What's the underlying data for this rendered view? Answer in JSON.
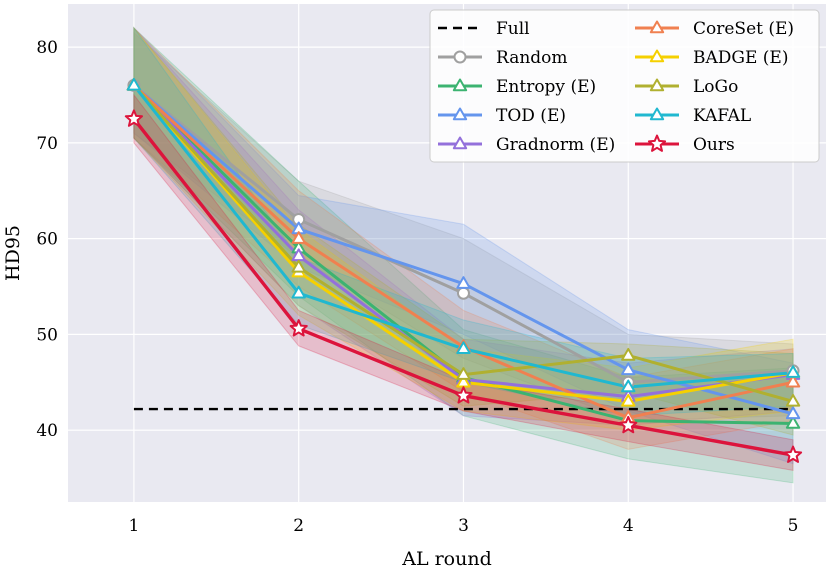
{
  "chart_data": {
    "type": "line",
    "title": "",
    "xlabel": "AL round",
    "ylabel": "HD95",
    "x": [
      1,
      2,
      3,
      4,
      5
    ],
    "xlim": [
      0.6,
      5.2
    ],
    "ylim": [
      32.5,
      84.5
    ],
    "xticks": [
      1,
      2,
      3,
      4,
      5
    ],
    "yticks": [
      40,
      50,
      60,
      70,
      80
    ],
    "grid": true,
    "legend_position": "top-right",
    "background": "#e9e9f1",
    "full_baseline": {
      "name": "Full",
      "value": 42.2,
      "color": "#000000"
    },
    "series": [
      {
        "name": "Random",
        "color": "#a0a0a0",
        "marker": "circle",
        "values": [
          76.0,
          62.0,
          54.3,
          45.0,
          46.2
        ],
        "lower": [
          71.0,
          58.0,
          47.5,
          41.0,
          41.5
        ],
        "upper": [
          81.5,
          66.0,
          60.0,
          50.0,
          49.0
        ]
      },
      {
        "name": "Entropy (E)",
        "color": "#3cb371",
        "marker": "triangle",
        "values": [
          76.0,
          59.0,
          45.5,
          41.0,
          40.7
        ],
        "lower": [
          70.5,
          54.0,
          41.5,
          37.0,
          34.5
        ],
        "upper": [
          82.0,
          66.0,
          50.5,
          45.5,
          46.5
        ]
      },
      {
        "name": "TOD (E)",
        "color": "#6495ed",
        "marker": "triangle",
        "values": [
          76.0,
          61.0,
          55.3,
          46.3,
          41.7
        ],
        "lower": [
          71.0,
          57.0,
          50.0,
          42.0,
          36.5
        ],
        "upper": [
          82.0,
          64.5,
          61.5,
          50.5,
          47.0
        ]
      },
      {
        "name": "Gradnorm (E)",
        "color": "#9370db",
        "marker": "triangle",
        "values": [
          76.0,
          58.2,
          45.3,
          43.5,
          45.8
        ],
        "lower": [
          70.5,
          53.0,
          41.5,
          40.5,
          42.0
        ],
        "upper": [
          82.0,
          63.0,
          49.5,
          47.0,
          48.5
        ]
      },
      {
        "name": "CoreSet (E)",
        "color": "#f08050",
        "marker": "triangle",
        "values": [
          76.0,
          60.0,
          48.7,
          41.3,
          45.0
        ],
        "lower": [
          70.5,
          55.0,
          44.0,
          38.0,
          41.0
        ],
        "upper": [
          82.0,
          65.0,
          52.5,
          45.5,
          48.5
        ]
      },
      {
        "name": "BADGE (E)",
        "color": "#f5d000",
        "marker": "triangle",
        "values": [
          76.0,
          56.5,
          45.0,
          43.0,
          46.0
        ],
        "lower": [
          70.5,
          52.0,
          42.0,
          40.0,
          42.0
        ],
        "upper": [
          82.0,
          61.0,
          48.5,
          46.5,
          49.5
        ]
      },
      {
        "name": "LoGo",
        "color": "#b0b030",
        "marker": "triangle",
        "values": [
          76.0,
          57.0,
          45.8,
          47.8,
          43.0
        ],
        "lower": [
          70.5,
          53.0,
          42.5,
          44.0,
          39.5
        ],
        "upper": [
          82.0,
          61.5,
          49.5,
          49.0,
          48.0
        ]
      },
      {
        "name": "KAFAL",
        "color": "#20b8d0",
        "marker": "triangle",
        "values": [
          76.0,
          54.3,
          48.5,
          44.5,
          46.0
        ],
        "lower": [
          70.5,
          51.0,
          45.0,
          41.5,
          42.5
        ],
        "upper": [
          82.0,
          58.0,
          51.5,
          47.5,
          48.0
        ]
      },
      {
        "name": "Ours",
        "color": "#dc143c",
        "marker": "star",
        "values": [
          72.5,
          50.6,
          43.6,
          40.5,
          37.4
        ],
        "lower": [
          70.0,
          48.8,
          42.0,
          38.8,
          35.8
        ],
        "upper": [
          75.0,
          52.5,
          45.2,
          42.2,
          39.0
        ]
      }
    ],
    "legend_columns": [
      [
        "Full",
        "Random",
        "Entropy (E)",
        "TOD (E)",
        "Gradnorm (E)"
      ],
      [
        "CoreSet (E)",
        "BADGE (E)",
        "LoGo",
        "KAFAL",
        "Ours"
      ]
    ]
  }
}
